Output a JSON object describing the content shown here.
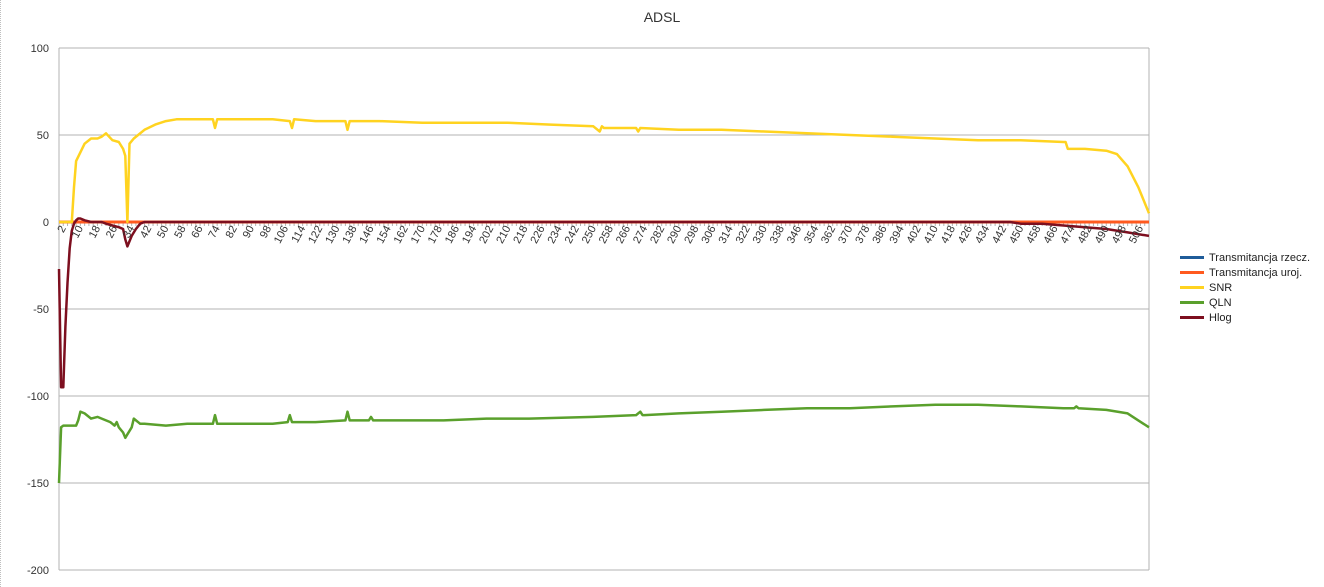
{
  "chart_data": {
    "type": "line",
    "title": "ADSL",
    "xlabel": "",
    "ylabel": "",
    "ylim": [
      -200,
      100
    ],
    "yticks": [
      100,
      50,
      0,
      -50,
      -100,
      -150,
      -200
    ],
    "xlim": [
      0,
      510
    ],
    "xtick_labels": [
      "2",
      "10",
      "18",
      "26",
      "34",
      "42",
      "50",
      "58",
      "66",
      "74",
      "82",
      "90",
      "98",
      "106",
      "114",
      "122",
      "130",
      "138",
      "146",
      "154",
      "162",
      "170",
      "178",
      "186",
      "194",
      "202",
      "210",
      "218",
      "226",
      "234",
      "242",
      "250",
      "258",
      "266",
      "274",
      "282",
      "290",
      "298",
      "306",
      "314",
      "322",
      "330",
      "338",
      "346",
      "354",
      "362",
      "370",
      "378",
      "386",
      "394",
      "402",
      "410",
      "418",
      "426",
      "434",
      "442",
      "450",
      "458",
      "466",
      "474",
      "482",
      "490",
      "498",
      "506"
    ],
    "grid": true,
    "legend_position": "right",
    "series": [
      {
        "name": "Transmitancja rzecz.",
        "color": "#1f5c99",
        "x": [
          0,
          510
        ],
        "values": [
          0,
          0
        ]
      },
      {
        "name": "Transmitancja uroj.",
        "color": "#ff5a1f",
        "x": [
          0,
          510
        ],
        "values": [
          0,
          0
        ]
      },
      {
        "name": "SNR",
        "color": "#ffd320",
        "x": [
          0,
          6,
          7,
          8,
          12,
          15,
          18,
          20,
          22,
          25,
          28,
          30,
          31,
          32,
          33,
          35,
          40,
          45,
          50,
          55,
          60,
          65,
          72,
          73,
          74,
          80,
          90,
          100,
          108,
          109,
          110,
          120,
          130,
          134,
          135,
          136,
          140,
          150,
          170,
          190,
          210,
          230,
          250,
          253,
          254,
          255,
          270,
          271,
          272,
          290,
          310,
          330,
          350,
          370,
          390,
          410,
          430,
          450,
          470,
          471,
          472,
          475,
          480,
          490,
          495,
          500,
          505,
          510
        ],
        "values": [
          0,
          0,
          20,
          35,
          45,
          48,
          48,
          49,
          51,
          47,
          46,
          42,
          38,
          0,
          45,
          48,
          53,
          56,
          58,
          59,
          59,
          59,
          59,
          54,
          59,
          59,
          59,
          59,
          58,
          54,
          59,
          58,
          58,
          58,
          53,
          58,
          58,
          58,
          57,
          57,
          57,
          56,
          55,
          52,
          55,
          54,
          54,
          52,
          54,
          53,
          53,
          52,
          51,
          50,
          49,
          48,
          47,
          47,
          46,
          46,
          42,
          42,
          42,
          41,
          39,
          32,
          20,
          5
        ]
      },
      {
        "name": "QLN",
        "color": "#5aa02c",
        "x": [
          0,
          1,
          2,
          5,
          8,
          9,
          10,
          12,
          15,
          18,
          20,
          22,
          24,
          25,
          26,
          27,
          28,
          30,
          31,
          32,
          34,
          35,
          38,
          40,
          50,
          60,
          70,
          72,
          73,
          74,
          80,
          100,
          107,
          108,
          109,
          120,
          134,
          135,
          136,
          145,
          146,
          147,
          160,
          180,
          200,
          220,
          250,
          270,
          272,
          273,
          274,
          290,
          310,
          330,
          350,
          370,
          390,
          410,
          430,
          450,
          470,
          475,
          476,
          477,
          490,
          500,
          505,
          510
        ],
        "values": [
          -150,
          -118,
          -117,
          -117,
          -117,
          -114,
          -109,
          -110,
          -113,
          -112,
          -113,
          -114,
          -115,
          -116,
          -117,
          -115,
          -118,
          -121,
          -124,
          -122,
          -118,
          -113,
          -116,
          -116,
          -117,
          -116,
          -116,
          -116,
          -111,
          -116,
          -116,
          -116,
          -115,
          -111,
          -115,
          -115,
          -114,
          -109,
          -114,
          -114,
          -112,
          -114,
          -114,
          -114,
          -113,
          -113,
          -112,
          -111,
          -109,
          -111,
          -111,
          -110,
          -109,
          -108,
          -107,
          -107,
          -106,
          -105,
          -105,
          -106,
          -107,
          -107,
          -106,
          -107,
          -108,
          -110,
          -114,
          -118
        ]
      },
      {
        "name": "Hlog",
        "color": "#7d0f1f",
        "x": [
          0,
          1,
          2,
          3,
          4,
          5,
          6,
          7,
          8,
          9,
          10,
          12,
          15,
          18,
          20,
          22,
          25,
          28,
          30,
          31,
          32,
          34,
          36,
          38,
          40,
          45,
          60,
          100,
          200,
          300,
          400,
          445,
          450,
          460,
          470,
          480,
          490,
          500,
          510
        ],
        "values": [
          -27,
          -95,
          -95,
          -60,
          -35,
          -15,
          -5,
          -1,
          1,
          2,
          2,
          1,
          0,
          0,
          0,
          -1,
          -2,
          -3,
          -4,
          -10,
          -14,
          -8,
          -4,
          -1,
          0,
          0,
          0,
          0,
          0,
          0,
          0,
          0,
          -1,
          -1,
          -2,
          -3,
          -4,
          -6,
          -8
        ]
      }
    ]
  }
}
